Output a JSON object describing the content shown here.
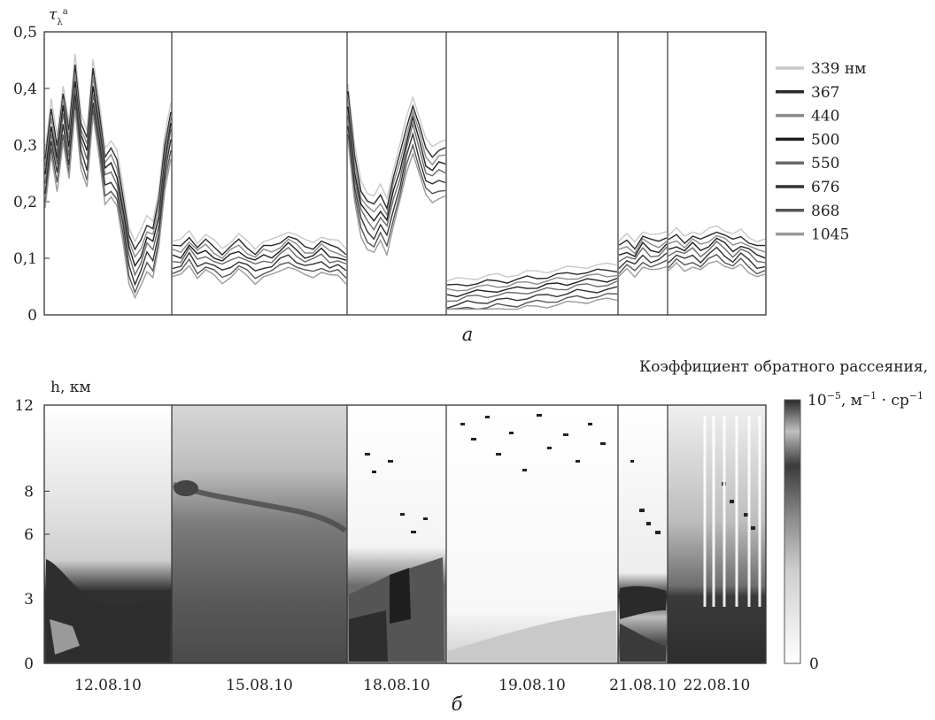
{
  "chart_data": [
    {
      "panel": "a",
      "type": "line",
      "ylabel": "τλa",
      "ylim": [
        0,
        0.5
      ],
      "y_ticks": [
        "0",
        "0,1",
        "0,2",
        "0,3",
        "0,4",
        "0,5"
      ],
      "caption": "а",
      "legend_position": "right",
      "segments": [
        "12.08.10",
        "15.08.10",
        "18.08.10",
        "19.08.10",
        "21.08.10",
        "22.08.10"
      ],
      "series": [
        {
          "name": "339 нм",
          "color": "#c8c8c8",
          "offset": 0.03
        },
        {
          "name": "367",
          "color": "#2a2a2a",
          "offset": 0.02
        },
        {
          "name": "440",
          "color": "#8a8a8a",
          "offset": 0.012
        },
        {
          "name": "500",
          "color": "#1e1e1e",
          "offset": 0.004
        },
        {
          "name": "550",
          "color": "#6a6a6a",
          "offset": -0.004
        },
        {
          "name": "676",
          "color": "#333333",
          "offset": -0.014
        },
        {
          "name": "868",
          "color": "#555555",
          "offset": -0.024
        },
        {
          "name": "1045",
          "color": "#9a9a9a",
          "offset": -0.032
        }
      ],
      "base_profiles": [
        [
          0.24,
          0.33,
          0.27,
          0.36,
          0.29,
          0.41,
          0.31,
          0.28,
          0.4,
          0.33,
          0.25,
          0.26,
          0.24,
          0.18,
          0.11,
          0.08,
          0.1,
          0.13,
          0.12,
          0.17,
          0.27,
          0.33
        ],
        [
          0.1,
          0.1,
          0.12,
          0.1,
          0.11,
          0.1,
          0.09,
          0.1,
          0.11,
          0.1,
          0.09,
          0.1,
          0.1,
          0.11,
          0.12,
          0.11,
          0.1,
          0.1,
          0.11,
          0.1,
          0.1,
          0.09
        ],
        [
          0.36,
          0.25,
          0.19,
          0.17,
          0.16,
          0.18,
          0.16,
          0.21,
          0.25,
          0.3,
          0.34,
          0.3,
          0.26,
          0.25,
          0.26,
          0.26
        ],
        [
          0.03,
          0.032,
          0.035,
          0.036,
          0.038,
          0.04,
          0.04,
          0.042,
          0.045,
          0.046,
          0.048,
          0.05,
          0.052,
          0.055,
          0.056,
          0.057,
          0.058,
          0.06
        ],
        [
          0.1,
          0.11,
          0.1,
          0.12,
          0.11,
          0.11,
          0.12
        ],
        [
          0.11,
          0.12,
          0.11,
          0.12,
          0.11,
          0.12,
          0.13,
          0.12,
          0.11,
          0.12,
          0.11,
          0.1,
          0.1
        ]
      ]
    },
    {
      "panel": "b",
      "type": "heatmap",
      "ylabel": "h, км",
      "ylim": [
        0,
        12
      ],
      "y_ticks": [
        "0",
        "3",
        "6",
        "8",
        "12"
      ],
      "x_labels": [
        "12.08.10",
        "15.08.10",
        "18.08.10",
        "19.08.10",
        "21.08.10",
        "22.08.10"
      ],
      "caption": "б",
      "colorbar": {
        "title": "Коэффициент обратного рассеяния,",
        "max_label": "10−5, м−1 · ср−1",
        "min_label": "0"
      }
    }
  ]
}
